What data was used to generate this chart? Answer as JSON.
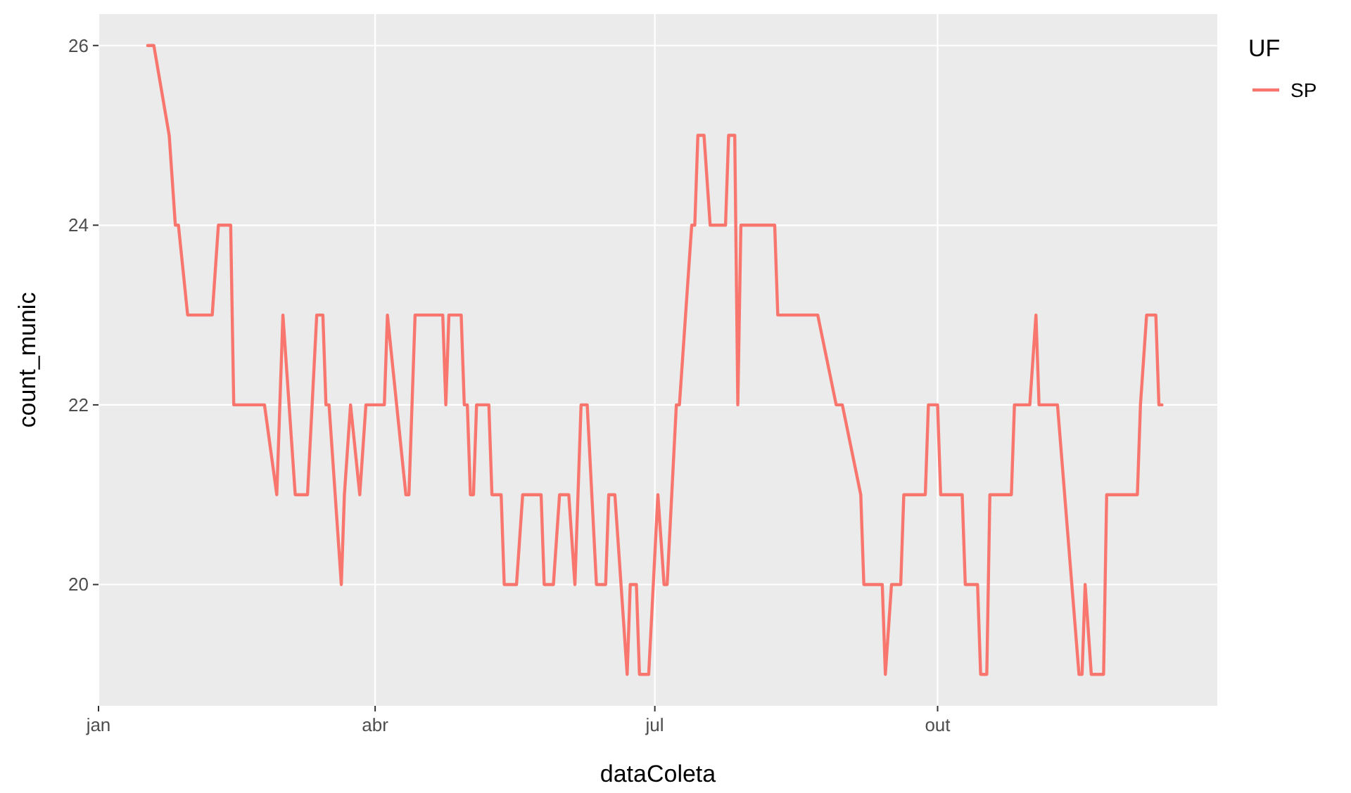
{
  "chart_data": {
    "type": "line",
    "xlabel": "dataColeta",
    "ylabel": "count_munic",
    "legend_title": "UF",
    "legend": "right",
    "grid": true,
    "line_style": "solid",
    "marker": "none",
    "xlim": [
      "--01-01",
      "--12-31"
    ],
    "ylim": [
      18.65,
      26.35
    ],
    "xticks": [
      {
        "value": "--01-01",
        "label": "jan"
      },
      {
        "value": "--04-01",
        "label": "abr"
      },
      {
        "value": "--07-01",
        "label": "jul"
      },
      {
        "value": "--10-01",
        "label": "out"
      }
    ],
    "yticks": [
      20,
      22,
      24,
      26
    ],
    "x": [
      "--01-17",
      "--01-19",
      "--01-24",
      "--01-26",
      "--01-27",
      "--01-30",
      "--02-07",
      "--02-09",
      "--02-13",
      "--02-14",
      "--02-24",
      "--02-28",
      "--03-02",
      "--03-06",
      "--03-10",
      "--03-13",
      "--03-15",
      "--03-16",
      "--03-17",
      "--03-21",
      "--03-22",
      "--03-24",
      "--03-27",
      "--03-29",
      "--04-04",
      "--04-05",
      "--04-11",
      "--04-12",
      "--04-14",
      "--04-23",
      "--04-24",
      "--04-25",
      "--04-29",
      "--04-30",
      "--05-01",
      "--05-02",
      "--05-03",
      "--05-04",
      "--05-08",
      "--05-09",
      "--05-12",
      "--05-13",
      "--05-17",
      "--05-19",
      "--05-25",
      "--05-26",
      "--05-29",
      "--05-31",
      "--06-03",
      "--06-05",
      "--06-07",
      "--06-09",
      "--06-12",
      "--06-15",
      "--06-16",
      "--06-18",
      "--06-22",
      "--06-23",
      "--06-25",
      "--06-26",
      "--06-29",
      "--07-02",
      "--07-04",
      "--07-05",
      "--07-08",
      "--07-09",
      "--07-13",
      "--07-14",
      "--07-15",
      "--07-17",
      "--07-19",
      "--07-24",
      "--07-25",
      "--07-27",
      "--07-28",
      "--07-29",
      "--08-09",
      "--08-10",
      "--08-23",
      "--08-29",
      "--08-31",
      "--09-06",
      "--09-07",
      "--09-13",
      "--09-14",
      "--09-16",
      "--09-19",
      "--09-20",
      "--09-27",
      "--09-28",
      "--10-01",
      "--10-02",
      "--10-09",
      "--10-10",
      "--10-14",
      "--10-15",
      "--10-17",
      "--10-18",
      "--10-25",
      "--10-26",
      "--10-31",
      "--11-02",
      "--11-03",
      "--11-09",
      "--11-16",
      "--11-17",
      "--11-18",
      "--11-20",
      "--11-24",
      "--11-25",
      "--12-05",
      "--12-06",
      "--12-08",
      "--12-11",
      "--12-12",
      "--12-13"
    ],
    "series": [
      {
        "name": "SP",
        "color": "#f8766d",
        "values": [
          26,
          26,
          25,
          24,
          24,
          23,
          23,
          24,
          24,
          22,
          22,
          21,
          23,
          21,
          21,
          23,
          23,
          22,
          22,
          20,
          21,
          22,
          21,
          22,
          22,
          23,
          21,
          21,
          23,
          23,
          22,
          23,
          23,
          22,
          22,
          21,
          21,
          22,
          22,
          21,
          21,
          20,
          20,
          21,
          21,
          20,
          20,
          21,
          21,
          20,
          22,
          22,
          20,
          20,
          21,
          21,
          19,
          20,
          20,
          19,
          19,
          21,
          20,
          20,
          22,
          22,
          24,
          24,
          25,
          25,
          24,
          24,
          25,
          25,
          22,
          24,
          24,
          23,
          23,
          22,
          22,
          21,
          20,
          20,
          19,
          20,
          20,
          21,
          21,
          22,
          22,
          21,
          21,
          20,
          20,
          19,
          19,
          21,
          21,
          22,
          22,
          23,
          22,
          22,
          19,
          19,
          20,
          19,
          19,
          21,
          21,
          22,
          23,
          23,
          22,
          22
        ]
      }
    ]
  }
}
